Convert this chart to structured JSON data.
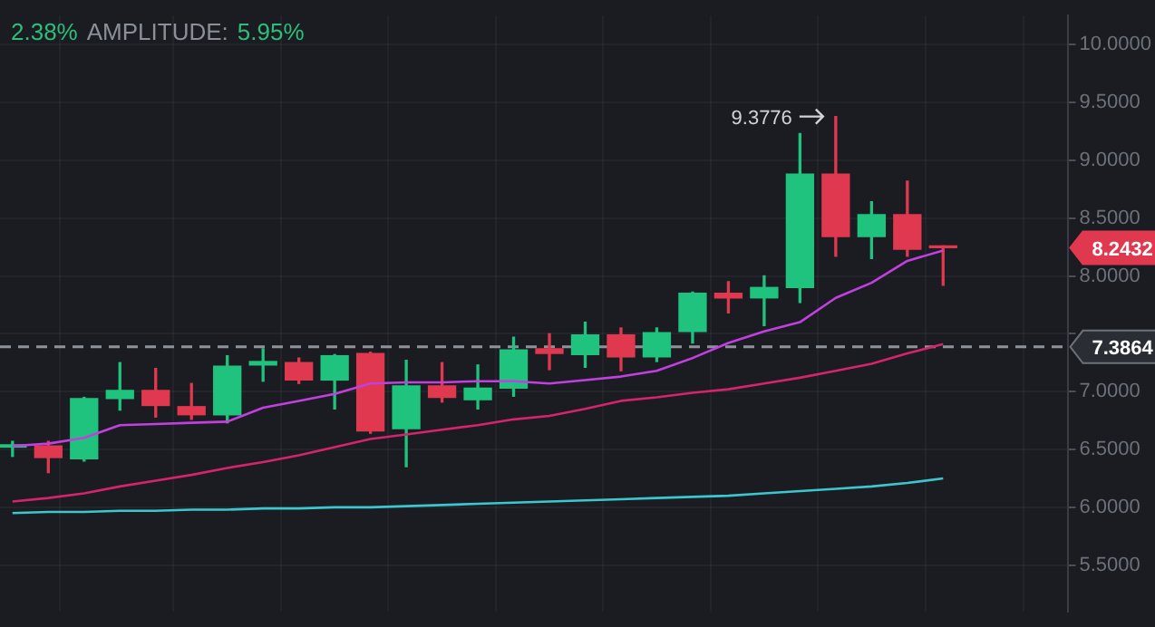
{
  "chart_data": {
    "type": "candlestick",
    "categories": [
      null,
      null,
      null,
      null,
      null,
      null,
      null,
      null,
      null,
      null,
      null,
      null,
      null,
      null,
      null,
      null,
      null,
      null,
      null,
      null,
      null,
      null,
      null,
      null,
      null,
      null,
      null
    ],
    "ohlc": [
      [
        6.52,
        6.57,
        6.44,
        6.54
      ],
      [
        6.53,
        6.57,
        6.3,
        6.43
      ],
      [
        6.42,
        6.95,
        6.4,
        6.94
      ],
      [
        6.94,
        7.25,
        6.84,
        7.01
      ],
      [
        7.01,
        7.2,
        6.78,
        6.88
      ],
      [
        6.87,
        7.07,
        6.76,
        6.8
      ],
      [
        6.8,
        7.31,
        6.73,
        7.22
      ],
      [
        7.23,
        7.37,
        7.09,
        7.26
      ],
      [
        7.25,
        7.29,
        7.07,
        7.1
      ],
      [
        7.1,
        7.32,
        6.85,
        7.31
      ],
      [
        7.33,
        7.34,
        6.64,
        6.66
      ],
      [
        6.68,
        7.27,
        6.35,
        7.05
      ],
      [
        7.05,
        7.25,
        6.91,
        6.95
      ],
      [
        6.93,
        7.23,
        6.85,
        7.03
      ],
      [
        7.03,
        7.47,
        6.96,
        7.36
      ],
      [
        7.37,
        7.5,
        7.19,
        7.33
      ],
      [
        7.32,
        7.6,
        7.21,
        7.49
      ],
      [
        7.49,
        7.55,
        7.18,
        7.3
      ],
      [
        7.3,
        7.55,
        7.26,
        7.51
      ],
      [
        7.52,
        7.86,
        7.42,
        7.85
      ],
      [
        7.85,
        7.95,
        7.68,
        7.81
      ],
      [
        7.81,
        8.0,
        7.57,
        7.9
      ],
      [
        7.9,
        9.23,
        7.77,
        8.88
      ],
      [
        8.88,
        9.3776,
        8.17,
        8.34
      ],
      [
        8.34,
        8.64,
        8.15,
        8.53
      ],
      [
        8.53,
        8.82,
        8.17,
        8.23
      ],
      [
        8.26,
        8.26,
        7.92,
        8.2432
      ]
    ],
    "colors": [
      "#1fc37e",
      "#e0384f",
      "#1fc37e",
      "#1fc37e",
      "#e0384f",
      "#e0384f",
      "#1fc37e",
      "#1fc37e",
      "#e0384f",
      "#1fc37e",
      "#e0384f",
      "#1fc37e",
      "#e0384f",
      "#1fc37e",
      "#1fc37e",
      "#e0384f",
      "#1fc37e",
      "#e0384f",
      "#1fc37e",
      "#1fc37e",
      "#e0384f",
      "#1fc37e",
      "#1fc37e",
      "#e0384f",
      "#1fc37e",
      "#e0384f",
      "#e0384f"
    ],
    "series": [
      {
        "type": "line",
        "color": "#c23fe0",
        "values": [
          6.53,
          6.55,
          6.6,
          6.71,
          6.72,
          6.73,
          6.74,
          6.86,
          6.92,
          6.98,
          7.07,
          7.08,
          7.08,
          7.09,
          7.09,
          7.07,
          7.1,
          7.13,
          7.18,
          7.29,
          7.42,
          7.52,
          7.6,
          7.81,
          7.94,
          8.13,
          8.22
        ]
      },
      {
        "type": "line",
        "color": "#d4246c",
        "values": [
          6.05,
          6.08,
          6.12,
          6.18,
          6.23,
          6.28,
          6.34,
          6.39,
          6.45,
          6.52,
          6.59,
          6.63,
          6.67,
          6.71,
          6.76,
          6.79,
          6.85,
          6.92,
          6.95,
          6.99,
          7.02,
          7.07,
          7.12,
          7.18,
          7.24,
          7.33,
          7.41
        ]
      },
      {
        "type": "line",
        "color": "#3cc6cf",
        "values": [
          5.95,
          5.96,
          5.96,
          5.97,
          5.97,
          5.98,
          5.98,
          5.99,
          5.99,
          6.0,
          6.0,
          6.01,
          6.02,
          6.03,
          6.04,
          6.05,
          6.06,
          6.07,
          6.08,
          6.09,
          6.1,
          6.12,
          6.14,
          6.16,
          6.18,
          6.21,
          6.25
        ]
      }
    ],
    "ylim": [
      5.1,
      10.25
    ],
    "yticks": [
      {
        "value": 5.5,
        "label": "5.5000"
      },
      {
        "value": 6,
        "label": "6.0000"
      },
      {
        "value": 6.5,
        "label": "6.5000"
      },
      {
        "value": 7,
        "label": "7.0000"
      },
      {
        "value": 7.5,
        "label": null
      },
      {
        "value": 8,
        "label": "8.0000"
      },
      {
        "value": 8.5,
        "label": "8.5000"
      },
      {
        "value": 9,
        "label": "9.0000"
      },
      {
        "value": 9.5,
        "label": "9.5000"
      },
      {
        "value": 10,
        "label": "10.0000"
      }
    ],
    "ref_lines": [
      {
        "axis": "y",
        "value": 7.3864,
        "label": "7.3864",
        "color": "#8e939b",
        "line_style": "dashed"
      }
    ],
    "annotations": [
      "2.38%",
      "AMPLITUDE:",
      "5.95%",
      "9.3776",
      "8.2432"
    ],
    "grid": true,
    "legend": false,
    "marker": "none",
    "line_style": "solid",
    "tick_labels": "y"
  }
}
